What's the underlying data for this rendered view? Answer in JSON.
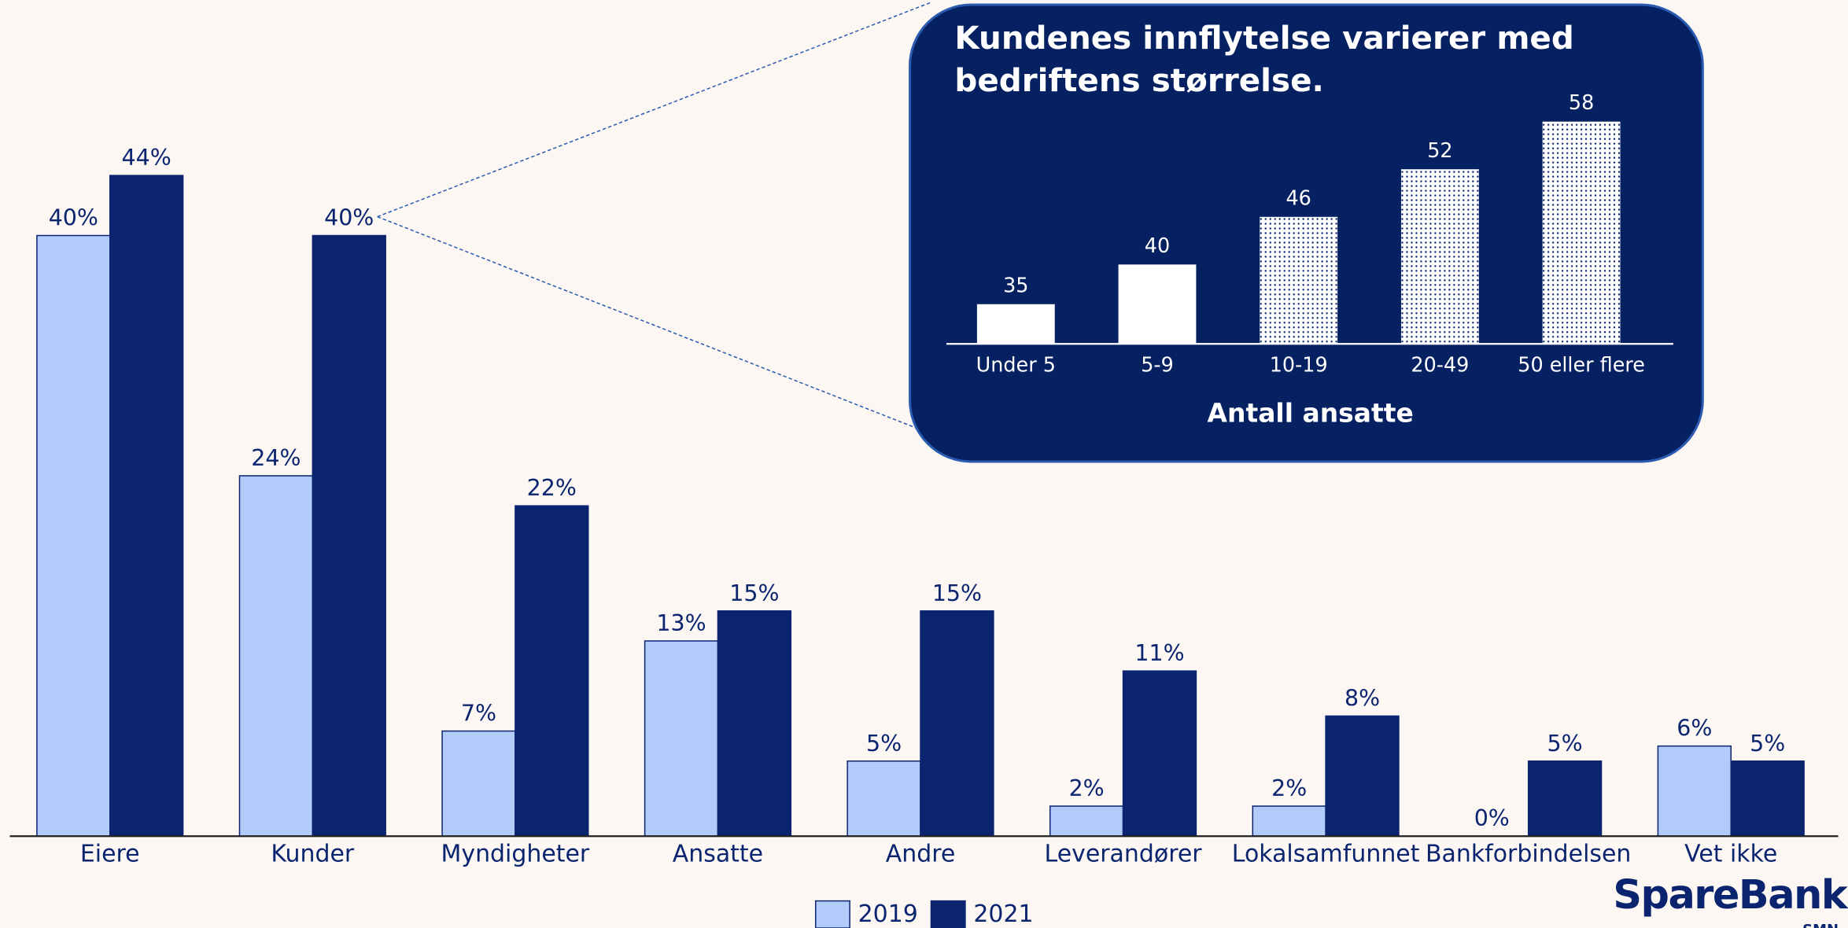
{
  "chart_data": [
    {
      "type": "bar",
      "categories": [
        "Eiere",
        "Kunder",
        "Myndigheter",
        "Ansatte",
        "Andre",
        "Leverandører",
        "Lokalsamfunnet",
        "Bankforbindelsen",
        "Vet ikke"
      ],
      "series": [
        {
          "name": "2019",
          "color": "#b3cbfb",
          "values": [
            40,
            24,
            7,
            13,
            5,
            2,
            2,
            0,
            6
          ],
          "value_labels": [
            "40%",
            "24%",
            "7%",
            "13%",
            "5%",
            "2%",
            "2%",
            "0%",
            "6%"
          ]
        },
        {
          "name": "2021",
          "color": "#0a2470",
          "values": [
            44,
            40,
            22,
            15,
            15,
            11,
            8,
            5,
            5
          ],
          "value_labels": [
            "44%",
            "40%",
            "22%",
            "15%",
            "15%",
            "11%",
            "8%",
            "5%",
            "5%"
          ]
        }
      ],
      "ylim": [
        0,
        55
      ]
    },
    {
      "type": "bar",
      "title": "Kundenes innflytelse varierer med bedriftens størrelse.",
      "categories": [
        "Under 5",
        "5-9",
        "10-19",
        "20-49",
        "50 eller flere"
      ],
      "values": [
        35,
        40,
        46,
        52,
        58
      ],
      "fills": [
        "solid",
        "solid",
        "dotted",
        "dotted",
        "dotted"
      ],
      "color": "#ffffff",
      "xlabel": "Antall ansatte",
      "ylim": [
        30,
        60
      ]
    }
  ],
  "logo": {
    "name": "SpareBank",
    "sub": "SMN"
  }
}
